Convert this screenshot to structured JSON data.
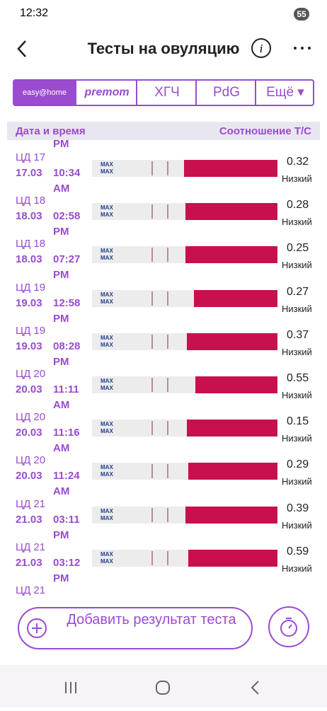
{
  "status_bar": {
    "time": "12:32",
    "battery": "55"
  },
  "header": {
    "title": "Тесты на овуляцию"
  },
  "tabs": [
    "easy@home",
    "premom",
    "ХГЧ",
    "PdG",
    "Ещё"
  ],
  "columns": {
    "left": "Дата и время",
    "right": "Соотношение Т/С"
  },
  "strip_text": "MAX",
  "cut_top": "PM",
  "cut_bottom": "ЦД 21",
  "rows": [
    {
      "day": "ЦД 17",
      "date": "17.03",
      "time": "10:34",
      "ampm": "AM",
      "ratio": "0.32",
      "level": "Низкий"
    },
    {
      "day": "ЦД 18",
      "date": "18.03",
      "time": "02:58",
      "ampm": "PM",
      "ratio": "0.28",
      "level": "Низкий"
    },
    {
      "day": "ЦД 18",
      "date": "18.03",
      "time": "07:27",
      "ampm": "PM",
      "ratio": "0.25",
      "level": "Низкий"
    },
    {
      "day": "ЦД 19",
      "date": "19.03",
      "time": "12:58",
      "ampm": "PM",
      "ratio": "0.27",
      "level": "Низкий"
    },
    {
      "day": "ЦД 19",
      "date": "19.03",
      "time": "08:28",
      "ampm": "PM",
      "ratio": "0.37",
      "level": "Низкий"
    },
    {
      "day": "ЦД 20",
      "date": "20.03",
      "time": "11:11",
      "ampm": "AM",
      "ratio": "0.55",
      "level": "Низкий"
    },
    {
      "day": "ЦД 20",
      "date": "20.03",
      "time": "11:16",
      "ampm": "AM",
      "ratio": "0.15",
      "level": "Низкий"
    },
    {
      "day": "ЦД 20",
      "date": "20.03",
      "time": "11:24",
      "ampm": "AM",
      "ratio": "0.29",
      "level": "Низкий"
    },
    {
      "day": "ЦД 21",
      "date": "21.03",
      "time": "03:11",
      "ampm": "PM",
      "ratio": "0.39",
      "level": "Низкий"
    },
    {
      "day": "ЦД 21",
      "date": "21.03",
      "time": "03:12",
      "ampm": "PM",
      "ratio": "0.59",
      "level": "Низкий"
    }
  ],
  "add_button": "Добавить результат теста"
}
